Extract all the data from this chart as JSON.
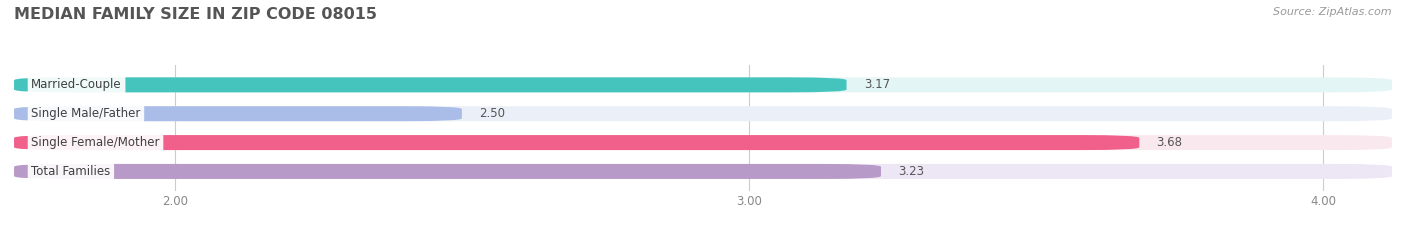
{
  "title": "MEDIAN FAMILY SIZE IN ZIP CODE 08015",
  "source": "Source: ZipAtlas.com",
  "categories": [
    "Married-Couple",
    "Single Male/Father",
    "Single Female/Mother",
    "Total Families"
  ],
  "values": [
    3.17,
    2.5,
    3.68,
    3.23
  ],
  "bar_colors": [
    "#45C4BE",
    "#AABDE8",
    "#F0608A",
    "#B89AC8"
  ],
  "bar_bg_colors": [
    "#E4F5F5",
    "#EBF0F8",
    "#FAE8EF",
    "#EDE6F4"
  ],
  "xlim_min": 1.72,
  "xlim_max": 4.12,
  "xticks": [
    2.0,
    3.0,
    4.0
  ],
  "xtick_labels": [
    "2.00",
    "3.00",
    "4.00"
  ],
  "background_color": "#ffffff",
  "bar_height": 0.52,
  "bar_gap": 0.18,
  "title_fontsize": 11.5,
  "label_fontsize": 8.5,
  "value_fontsize": 8.5,
  "source_fontsize": 8
}
